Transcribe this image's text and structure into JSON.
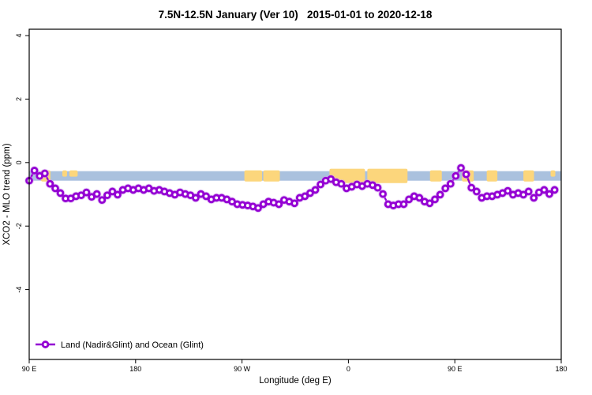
{
  "title": "7.5N-12.5N January (Ver 10)   2015-01-01 to 2020-12-18",
  "xlabel": "Longitude (deg E)",
  "ylabel": "XCO2 - MLO trend (ppm)",
  "legend": {
    "label": "Land (Nadir&Glint) and Ocean (Glint)"
  },
  "colors": {
    "line": "#9400d3",
    "marker_halo": "#cf9bf0",
    "marker_fill": "#ffffff",
    "ocean_band": "#aac1de",
    "land_patch": "#fcd67c",
    "axis": "#000000"
  },
  "chart_data": {
    "type": "line",
    "title": "7.5N-12.5N January (Ver 10)   2015-01-01 to 2020-12-18",
    "xlabel": "Longitude (deg E)",
    "ylabel": "XCO2 - MLO trend (ppm)",
    "grid": false,
    "legend_position": "bottom-left",
    "x_axis": {
      "range_deg": [
        0,
        450
      ],
      "ticks_deg": [
        0,
        90,
        180,
        270,
        360,
        450
      ],
      "tick_labels": [
        "90 E",
        "180",
        "90 W",
        "0",
        "90 E",
        "180"
      ],
      "note": "longitude axis wraps eastward starting at 90E"
    },
    "y_axis": {
      "range": [
        -6.2,
        4.2
      ],
      "ticks": [
        4,
        2,
        0,
        -2,
        -4
      ],
      "tick_labels": [
        "4",
        "2",
        "0",
        "-2",
        "-4"
      ]
    },
    "ocean_band": {
      "v_top": -0.27,
      "v_bottom": -0.57
    },
    "land_patches_deg": [
      [
        10,
        18
      ],
      [
        28,
        32
      ],
      [
        34,
        41
      ],
      [
        182,
        197
      ],
      [
        198,
        212
      ],
      [
        254,
        284
      ],
      [
        286,
        320
      ],
      [
        339,
        349
      ],
      [
        366,
        376
      ],
      [
        387,
        396
      ],
      [
        418,
        427
      ],
      [
        441,
        445
      ]
    ],
    "series": [
      {
        "name": "Land (Nadir&Glint) and Ocean (Glint)",
        "marker": "open-circle",
        "x_start_deg": 0,
        "x_step_deg": 4.4,
        "values": [
          -0.57,
          -0.25,
          -0.42,
          -0.34,
          -0.67,
          -0.81,
          -0.96,
          -1.13,
          -1.13,
          -1.06,
          -1.03,
          -0.94,
          -1.08,
          -0.99,
          -1.18,
          -1.03,
          -0.91,
          -1.01,
          -0.86,
          -0.81,
          -0.86,
          -0.81,
          -0.86,
          -0.81,
          -0.89,
          -0.86,
          -0.91,
          -0.96,
          -1.01,
          -0.94,
          -0.99,
          -1.03,
          -1.11,
          -0.99,
          -1.06,
          -1.16,
          -1.11,
          -1.11,
          -1.16,
          -1.23,
          -1.31,
          -1.33,
          -1.35,
          -1.38,
          -1.43,
          -1.31,
          -1.23,
          -1.26,
          -1.31,
          -1.18,
          -1.23,
          -1.28,
          -1.11,
          -1.06,
          -0.96,
          -0.86,
          -0.69,
          -0.57,
          -0.52,
          -0.62,
          -0.67,
          -0.81,
          -0.76,
          -0.69,
          -0.74,
          -0.67,
          -0.71,
          -0.79,
          -0.99,
          -1.31,
          -1.35,
          -1.31,
          -1.31,
          -1.16,
          -1.06,
          -1.11,
          -1.23,
          -1.28,
          -1.16,
          -1.01,
          -0.81,
          -0.67,
          -0.42,
          -0.17,
          -0.37,
          -0.79,
          -0.91,
          -1.11,
          -1.06,
          -1.06,
          -1.01,
          -0.96,
          -0.89,
          -1.01,
          -0.96,
          -1.01,
          -0.91,
          -1.11,
          -0.94,
          -0.86,
          -0.99,
          -0.86
        ]
      }
    ]
  }
}
